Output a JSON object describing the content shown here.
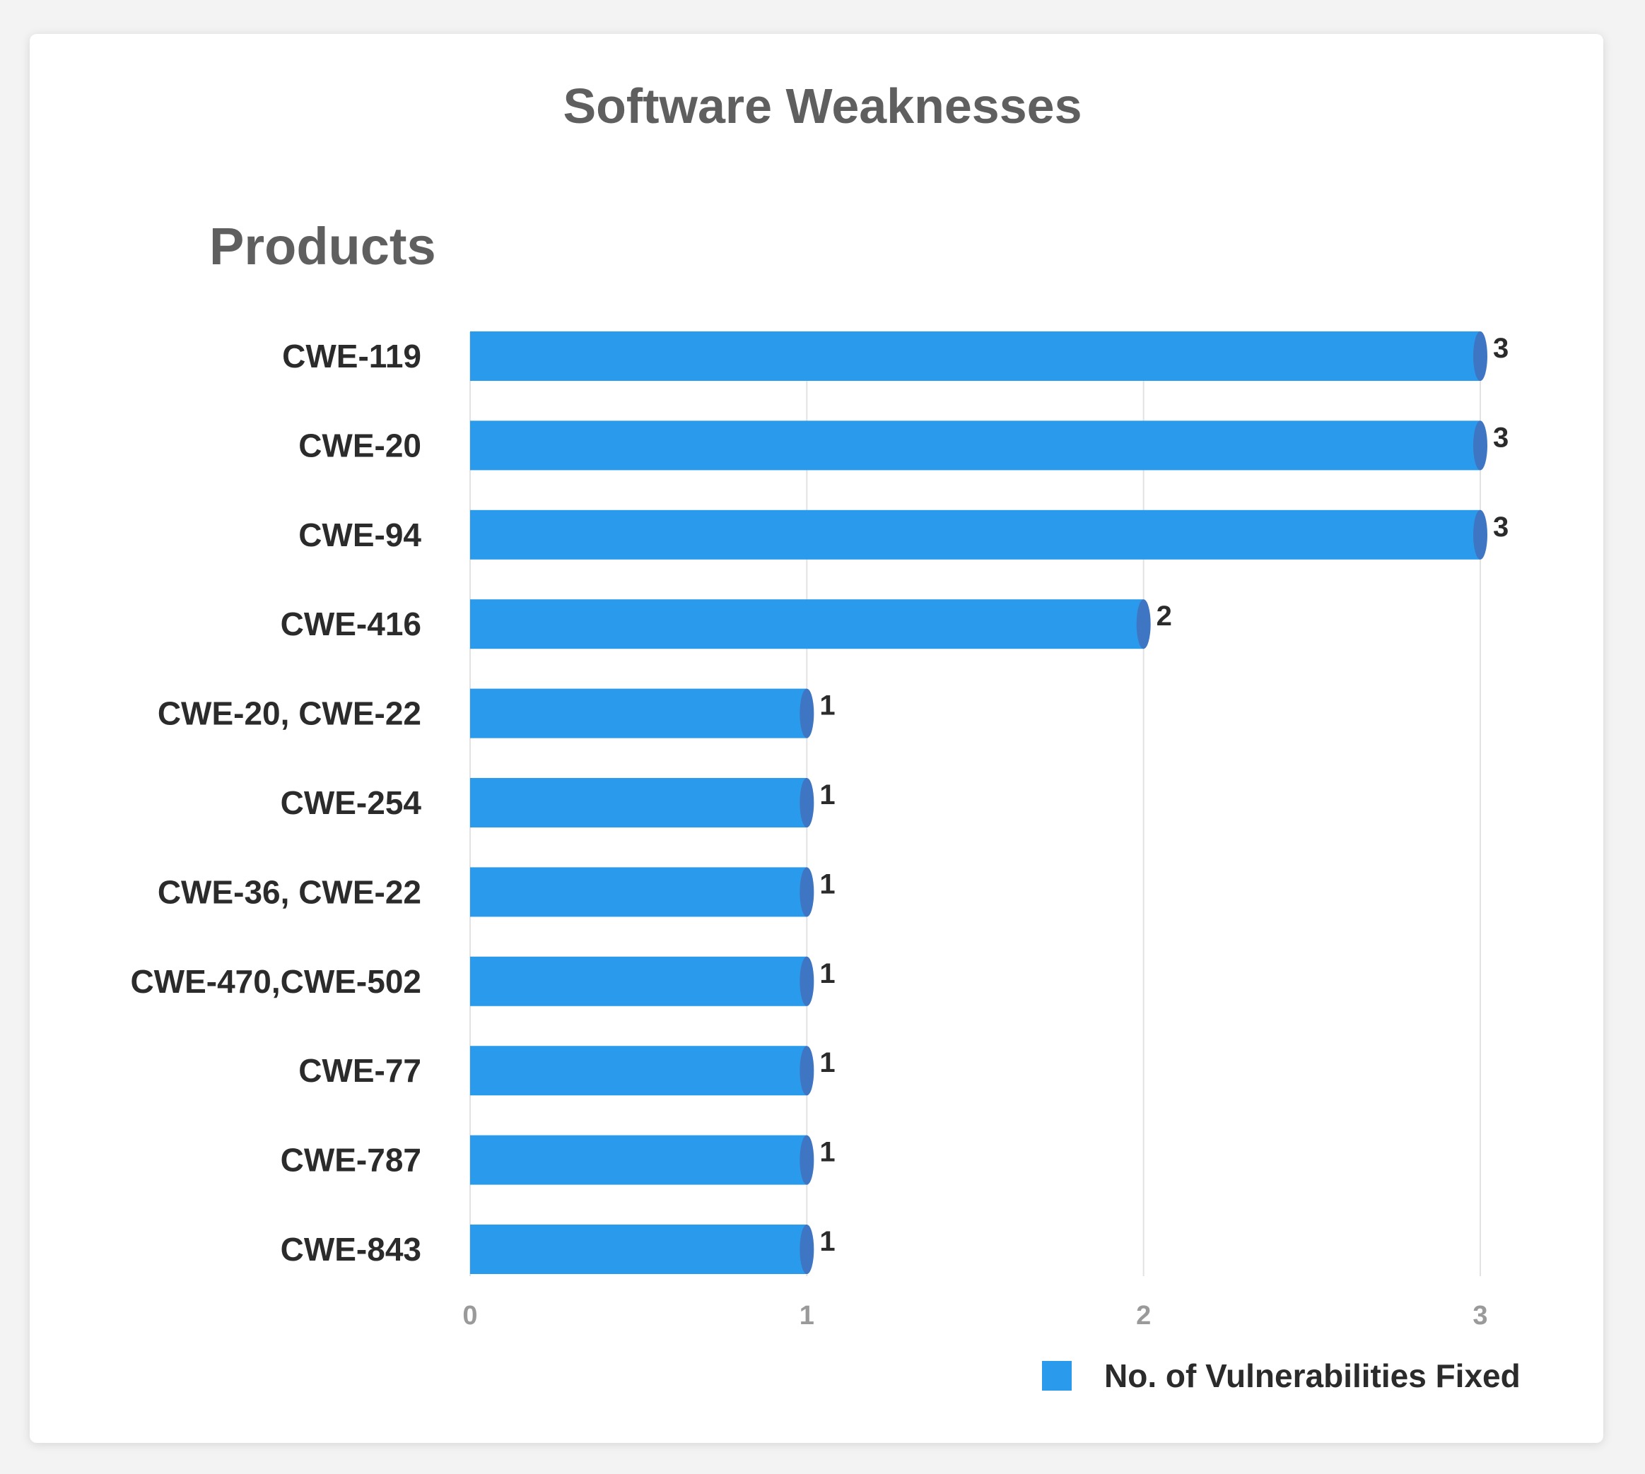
{
  "chart_data": {
    "type": "bar",
    "orientation": "horizontal",
    "title": "Software Weaknesses",
    "ylabel": "Products",
    "xlabel": "",
    "categories": [
      "CWE-119",
      "CWE-20",
      "CWE-94",
      "CWE-416",
      "CWE-20, CWE-22",
      "CWE-254",
      "CWE-36, CWE-22",
      "CWE-470,CWE-502",
      "CWE-77",
      "CWE-787",
      "CWE-843"
    ],
    "series": [
      {
        "name": "No. of Vulnerabilities Fixed",
        "values": [
          3,
          3,
          3,
          2,
          1,
          1,
          1,
          1,
          1,
          1,
          1
        ]
      }
    ],
    "xlim": [
      0,
      3
    ],
    "xticks": [
      "0",
      "1",
      "2",
      "3"
    ],
    "grid": true,
    "legend_position": "bottom-right",
    "data_labels": true
  },
  "colors": {
    "bar": "#2a9bec",
    "bar_cap": "#3f76c4",
    "grid": "#e2e2e2"
  }
}
